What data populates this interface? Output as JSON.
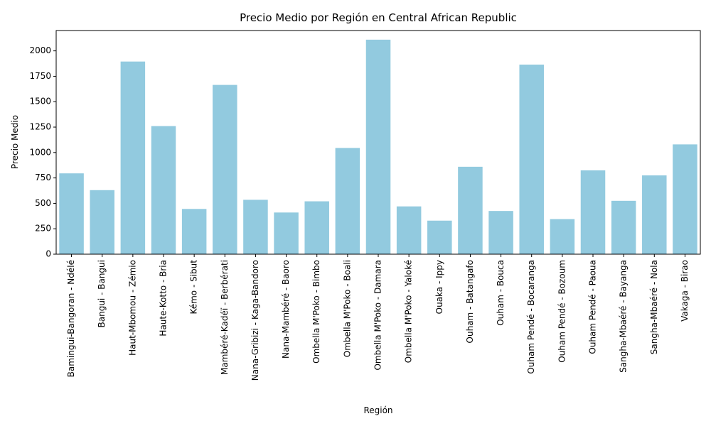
{
  "chart_data": {
    "type": "bar",
    "title": "Precio Medio por Región en Central African Republic",
    "xlabel": "Región",
    "ylabel": "Precio Medio",
    "ylim": [
      0,
      2200
    ],
    "yticks": [
      0,
      250,
      500,
      750,
      1000,
      1250,
      1500,
      1750,
      2000
    ],
    "grid": false,
    "bar_color": "#92CADF",
    "categories": [
      "Bamingui-Bangoran - Ndélé",
      "Bangui - Bangui",
      "Haut-Mbomou - Zémio",
      "Haute-Kotto - Bria",
      "Kémo - Sibut",
      "Mambéré-Kadéï - Berbérati",
      "Nana-Gribizi - Kaga-Bandoro",
      "Nana-Mambéré - Baoro",
      "Ombella M'Poko - Bimbo",
      "Ombella M'Poko - Boali",
      "Ombella M'Poko - Damara",
      "Ombella M'Poko - Yaloké",
      "Ouaka - Ippy",
      "Ouham - Batangafo",
      "Ouham - Bouca",
      "Ouham Pendé - Bocaranga",
      "Ouham Pendé - Bozoum",
      "Ouham Pendé - Paoua",
      "Sangha-Mbaéré - Bayanga",
      "Sangha-Mbaéré - Nola",
      "Vakaga - Birao"
    ],
    "values": [
      795,
      630,
      1895,
      1260,
      445,
      1665,
      535,
      410,
      520,
      1045,
      2110,
      470,
      330,
      860,
      425,
      1865,
      345,
      825,
      525,
      775,
      1080
    ]
  }
}
